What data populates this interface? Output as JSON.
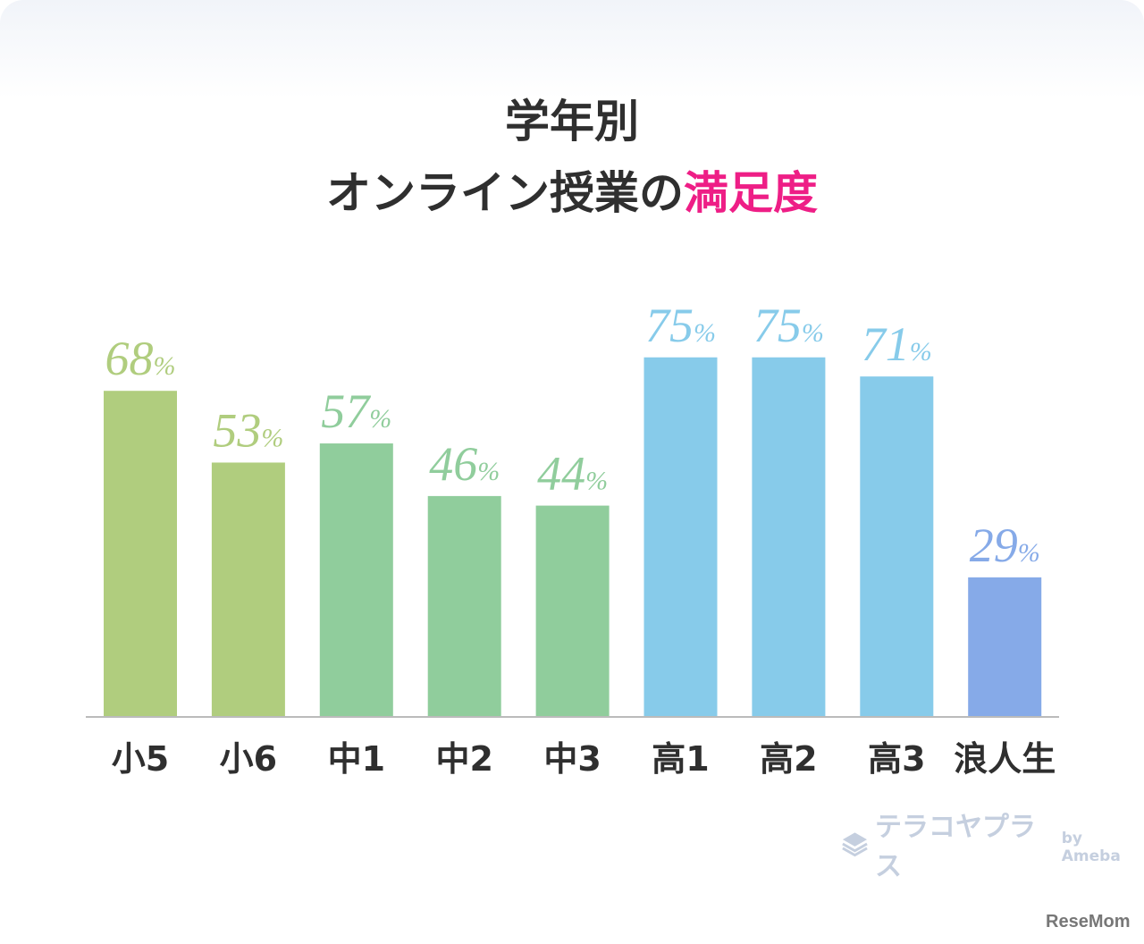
{
  "chart_data": {
    "type": "bar",
    "title": "学年別",
    "subtitle_prefix": "オンライン授業の",
    "subtitle_highlight": "満足度",
    "categories": [
      "小5",
      "小6",
      "中1",
      "中2",
      "中3",
      "高1",
      "高2",
      "高3",
      "浪人生"
    ],
    "values": [
      68,
      53,
      57,
      46,
      44,
      75,
      75,
      71,
      29
    ],
    "value_suffix": "%",
    "colors": [
      "#b0cd7e",
      "#b0cd7e",
      "#90cd9c",
      "#90cd9c",
      "#90cd9c",
      "#87cbea",
      "#87cbea",
      "#87cbea",
      "#86aae8"
    ],
    "ylim": [
      0,
      80
    ],
    "xlabel": "",
    "ylabel": "",
    "grid": false
  },
  "branding": {
    "logo": "テラコヤプラス",
    "by": "by Ameba",
    "publisher": "ReseMom"
  }
}
